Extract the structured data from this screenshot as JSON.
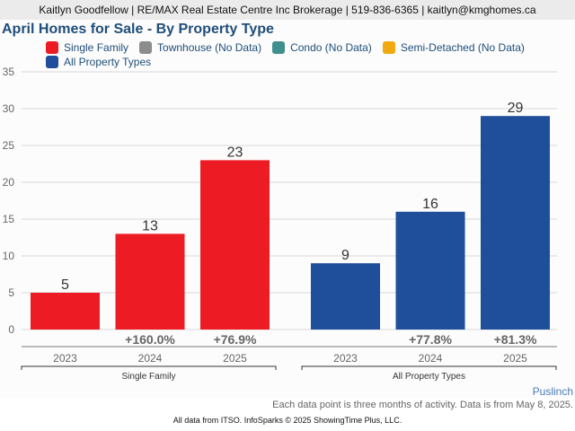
{
  "header": {
    "contact": "Kaitlyn Goodfellow | RE/MAX Real Estate Centre Inc Brokerage | 519-836-6365 | kaitlyn@kmghomes.ca"
  },
  "legend": {
    "items": [
      {
        "label": "Single Family",
        "color": "#ed1c24"
      },
      {
        "label": "Townhouse (No Data)",
        "color": "#8a8d8c"
      },
      {
        "label": "Condo (No Data)",
        "color": "#3f8f8f"
      },
      {
        "label": "Semi-Detached (No Data)",
        "color": "#f0a90f"
      },
      {
        "label": "All Property Types",
        "color": "#1f4e9a"
      }
    ]
  },
  "footer": {
    "area": "Puslinch",
    "note": "Each data point is three months of activity. Data is from May 8, 2025.",
    "credit": "All data from ITSO. InfoSparks © 2025 ShowingTime Plus, LLC."
  },
  "chart_data": {
    "type": "bar",
    "title": "April Homes for Sale - By Property Type",
    "xlabel": "",
    "ylabel": "",
    "ylim": [
      0,
      35
    ],
    "yticks": [
      0,
      5,
      10,
      15,
      20,
      25,
      30,
      35
    ],
    "grid": true,
    "legend_position": "top",
    "groups": [
      {
        "name": "Single Family",
        "color": "#ed1c24",
        "categories": [
          "2023",
          "2024",
          "2025"
        ],
        "values": [
          5,
          13,
          23
        ],
        "changes": [
          "",
          "+160.0%",
          "+76.9%"
        ]
      },
      {
        "name": "All Property Types",
        "color": "#1f4e9a",
        "categories": [
          "2023",
          "2024",
          "2025"
        ],
        "values": [
          9,
          16,
          29
        ],
        "changes": [
          "",
          "+77.8%",
          "+81.3%"
        ]
      }
    ]
  }
}
